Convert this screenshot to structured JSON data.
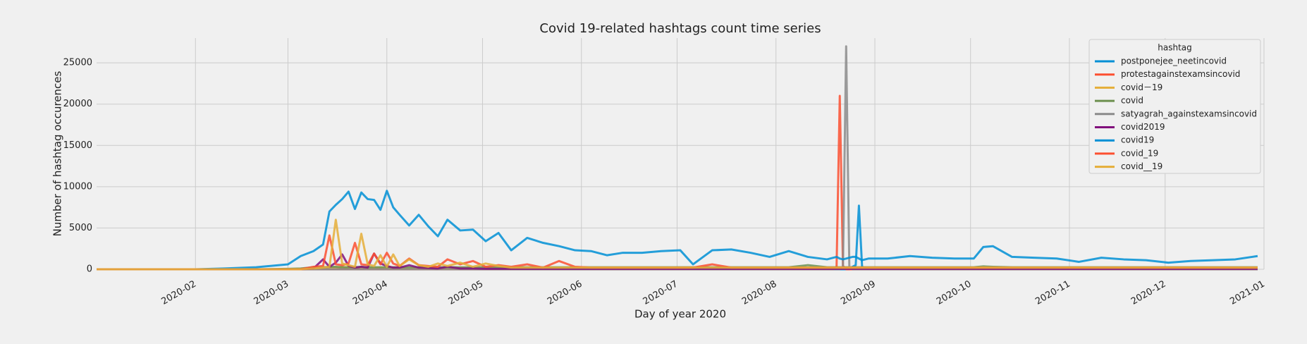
{
  "chart_data": {
    "type": "line",
    "title": "Covid 19-related hashtags count time series",
    "x_label": "Day of year 2020",
    "y_label": "Number of hashtag occurences",
    "legend_title": "hashtag",
    "legend": "upper right",
    "grid": true,
    "xlim": [
      "2020-01-01",
      "2021-01-01"
    ],
    "ylim": [
      0,
      28000
    ],
    "xticks": [
      {
        "value": "2020-02-01",
        "label": "2020-02"
      },
      {
        "value": "2020-03-01",
        "label": "2020-03"
      },
      {
        "value": "2020-04-01",
        "label": "2020-04"
      },
      {
        "value": "2020-05-01",
        "label": "2020-05"
      },
      {
        "value": "2020-06-01",
        "label": "2020-06"
      },
      {
        "value": "2020-07-01",
        "label": "2020-07"
      },
      {
        "value": "2020-08-01",
        "label": "2020-08"
      },
      {
        "value": "2020-09-01",
        "label": "2020-09"
      },
      {
        "value": "2020-10-01",
        "label": "2020-10"
      },
      {
        "value": "2020-11-01",
        "label": "2020-11"
      },
      {
        "value": "2020-12-01",
        "label": "2020-12"
      },
      {
        "value": "2021-01-01",
        "label": "2021-01"
      }
    ],
    "yticks": [
      0,
      5000,
      10000,
      15000,
      20000,
      25000
    ],
    "x": [
      "2020-01-01",
      "2020-01-15",
      "2020-02-01",
      "2020-02-10",
      "2020-02-20",
      "2020-03-01",
      "2020-03-05",
      "2020-03-09",
      "2020-03-12",
      "2020-03-14",
      "2020-03-16",
      "2020-03-18",
      "2020-03-20",
      "2020-03-22",
      "2020-03-24",
      "2020-03-26",
      "2020-03-28",
      "2020-03-30",
      "2020-04-01",
      "2020-04-03",
      "2020-04-05",
      "2020-04-08",
      "2020-04-11",
      "2020-04-14",
      "2020-04-17",
      "2020-04-20",
      "2020-04-24",
      "2020-04-28",
      "2020-05-02",
      "2020-05-06",
      "2020-05-10",
      "2020-05-15",
      "2020-05-20",
      "2020-05-25",
      "2020-05-30",
      "2020-06-04",
      "2020-06-09",
      "2020-06-14",
      "2020-06-20",
      "2020-06-26",
      "2020-07-02",
      "2020-07-06",
      "2020-07-12",
      "2020-07-18",
      "2020-07-24",
      "2020-07-30",
      "2020-08-05",
      "2020-08-11",
      "2020-08-17",
      "2020-08-19",
      "2020-08-20",
      "2020-08-21",
      "2020-08-22",
      "2020-08-23",
      "2020-08-24",
      "2020-08-25",
      "2020-08-26",
      "2020-08-27",
      "2020-08-28",
      "2020-08-30",
      "2020-09-05",
      "2020-09-12",
      "2020-09-19",
      "2020-09-26",
      "2020-10-02",
      "2020-10-05",
      "2020-10-08",
      "2020-10-14",
      "2020-10-21",
      "2020-10-28",
      "2020-11-04",
      "2020-11-11",
      "2020-11-18",
      "2020-11-25",
      "2020-12-02",
      "2020-12-09",
      "2020-12-16",
      "2020-12-23",
      "2020-12-30"
    ],
    "series": [
      {
        "name": "postponejee_neetincovid",
        "color": "#008fd5",
        "values": [
          0,
          0,
          0,
          0,
          0,
          0,
          0,
          0,
          0,
          0,
          0,
          0,
          0,
          0,
          0,
          0,
          0,
          0,
          0,
          0,
          0,
          0,
          0,
          0,
          0,
          0,
          0,
          0,
          0,
          0,
          0,
          0,
          0,
          0,
          0,
          0,
          0,
          0,
          0,
          0,
          0,
          0,
          0,
          0,
          0,
          0,
          0,
          0,
          0,
          0,
          0,
          0,
          0,
          0,
          0,
          300,
          500,
          7700,
          300,
          0,
          0,
          0,
          0,
          0,
          0,
          0,
          0,
          0,
          0,
          0,
          0,
          0,
          0,
          0,
          0,
          0,
          0,
          0,
          0
        ]
      },
      {
        "name": "protestagainstexamsincovid",
        "color": "#fc4f30",
        "values": [
          0,
          0,
          0,
          0,
          0,
          0,
          0,
          0,
          0,
          0,
          0,
          0,
          0,
          0,
          0,
          0,
          0,
          0,
          0,
          0,
          0,
          0,
          0,
          0,
          0,
          0,
          0,
          0,
          0,
          0,
          0,
          0,
          0,
          0,
          0,
          0,
          0,
          0,
          0,
          0,
          0,
          0,
          0,
          0,
          0,
          0,
          0,
          0,
          0,
          0,
          300,
          21000,
          400,
          0,
          0,
          0,
          0,
          0,
          0,
          0,
          0,
          0,
          0,
          0,
          0,
          0,
          0,
          0,
          0,
          0,
          0,
          0,
          0,
          0,
          0,
          0,
          0,
          0,
          0
        ]
      },
      {
        "name": "covid－19",
        "color": "#e5ae38",
        "values": [
          0,
          0,
          0,
          0,
          0,
          0,
          50,
          100,
          150,
          200,
          200,
          300,
          200,
          150,
          200,
          150,
          150,
          200,
          150,
          150,
          100,
          100,
          100,
          100,
          100,
          100,
          100,
          100,
          100,
          100,
          100,
          100,
          100,
          100,
          100,
          100,
          100,
          100,
          100,
          100,
          100,
          100,
          100,
          100,
          100,
          100,
          100,
          100,
          100,
          100,
          100,
          100,
          100,
          100,
          100,
          100,
          100,
          100,
          100,
          100,
          100,
          100,
          100,
          100,
          100,
          100,
          100,
          100,
          100,
          100,
          100,
          100,
          100,
          100,
          100,
          100,
          100,
          100,
          100
        ]
      },
      {
        "name": "covid",
        "color": "#6d904f",
        "values": [
          0,
          0,
          0,
          0,
          0,
          50,
          100,
          250,
          250,
          300,
          300,
          250,
          250,
          250,
          300,
          250,
          250,
          250,
          250,
          250,
          250,
          250,
          250,
          250,
          250,
          250,
          250,
          250,
          250,
          250,
          250,
          250,
          250,
          250,
          250,
          250,
          250,
          250,
          250,
          250,
          250,
          250,
          250,
          250,
          250,
          250,
          250,
          500,
          250,
          250,
          250,
          250,
          250,
          250,
          250,
          250,
          250,
          250,
          250,
          250,
          250,
          250,
          250,
          250,
          250,
          350,
          300,
          250,
          250,
          250,
          250,
          250,
          250,
          250,
          250,
          250,
          250,
          250,
          250
        ]
      },
      {
        "name": "satyagrah_againstexamsincovid",
        "color": "#8b8b8b",
        "values": [
          0,
          0,
          0,
          0,
          0,
          0,
          0,
          0,
          0,
          0,
          0,
          0,
          0,
          0,
          0,
          0,
          0,
          0,
          0,
          0,
          0,
          0,
          0,
          0,
          0,
          0,
          0,
          0,
          0,
          0,
          0,
          0,
          0,
          0,
          0,
          0,
          0,
          0,
          0,
          0,
          0,
          0,
          0,
          0,
          0,
          0,
          0,
          0,
          0,
          0,
          0,
          0,
          300,
          27000,
          300,
          0,
          0,
          0,
          0,
          0,
          0,
          0,
          0,
          0,
          0,
          0,
          0,
          0,
          0,
          0,
          0,
          0,
          0,
          0,
          0,
          0,
          0,
          0,
          0
        ]
      },
      {
        "name": "covid2019",
        "color": "#810f7c",
        "values": [
          0,
          0,
          0,
          0,
          0,
          0,
          0,
          100,
          1200,
          300,
          800,
          1800,
          400,
          200,
          300,
          200,
          1900,
          700,
          400,
          200,
          200,
          500,
          200,
          150,
          100,
          300,
          100,
          100,
          50,
          50,
          50,
          50,
          50,
          50,
          50,
          50,
          50,
          50,
          50,
          50,
          50,
          50,
          50,
          50,
          50,
          50,
          50,
          50,
          50,
          50,
          50,
          50,
          50,
          50,
          50,
          50,
          50,
          50,
          50,
          50,
          50,
          50,
          50,
          50,
          50,
          50,
          50,
          50,
          50,
          50,
          50,
          50,
          50,
          50,
          50,
          50,
          50,
          50,
          50
        ]
      },
      {
        "name": "covid19",
        "color": "#008fd5",
        "values": [
          0,
          0,
          0,
          100,
          250,
          600,
          1600,
          2200,
          3000,
          7000,
          7800,
          8500,
          9400,
          7300,
          9300,
          8500,
          8400,
          7200,
          9500,
          7500,
          6600,
          5300,
          6600,
          5200,
          4000,
          6000,
          4700,
          4800,
          3400,
          4400,
          2300,
          3800,
          3200,
          2800,
          2300,
          2200,
          1700,
          2000,
          2000,
          2200,
          2300,
          600,
          2300,
          2400,
          2000,
          1500,
          2200,
          1500,
          1200,
          1400,
          1500,
          1300,
          1200,
          1300,
          1400,
          1500,
          1500,
          1300,
          1100,
          1300,
          1300,
          1600,
          1400,
          1300,
          1300,
          2700,
          2800,
          1500,
          1400,
          1300,
          900,
          1400,
          1200,
          1100,
          800,
          1000,
          1100,
          1200,
          1600
        ]
      },
      {
        "name": "covid_19",
        "color": "#fc4f30",
        "values": [
          0,
          0,
          0,
          0,
          0,
          0,
          0,
          300,
          400,
          4100,
          600,
          500,
          700,
          3200,
          600,
          500,
          1900,
          600,
          2000,
          700,
          400,
          1300,
          500,
          400,
          300,
          1200,
          600,
          1000,
          300,
          500,
          300,
          600,
          200,
          1000,
          300,
          200,
          200,
          200,
          200,
          200,
          200,
          200,
          600,
          200,
          200,
          200,
          200,
          200,
          200,
          200,
          200,
          200,
          200,
          200,
          200,
          200,
          200,
          200,
          200,
          200,
          200,
          200,
          200,
          200,
          200,
          200,
          200,
          200,
          200,
          200,
          200,
          200,
          200,
          200,
          200,
          200,
          200,
          200,
          200
        ]
      },
      {
        "name": "covid__19",
        "color": "#e5ae38",
        "values": [
          0,
          0,
          0,
          0,
          0,
          0,
          0,
          100,
          200,
          300,
          6000,
          700,
          500,
          300,
          4300,
          600,
          400,
          1700,
          300,
          1800,
          400,
          1200,
          500,
          300,
          700,
          400,
          800,
          300,
          700,
          400,
          200,
          200,
          200,
          200,
          200,
          200,
          200,
          200,
          200,
          200,
          200,
          200,
          200,
          200,
          200,
          200,
          200,
          200,
          200,
          200,
          200,
          200,
          200,
          200,
          200,
          200,
          200,
          200,
          200,
          200,
          200,
          200,
          200,
          200,
          200,
          200,
          200,
          200,
          200,
          200,
          200,
          200,
          200,
          200,
          200,
          200,
          200,
          200,
          200
        ]
      }
    ]
  }
}
